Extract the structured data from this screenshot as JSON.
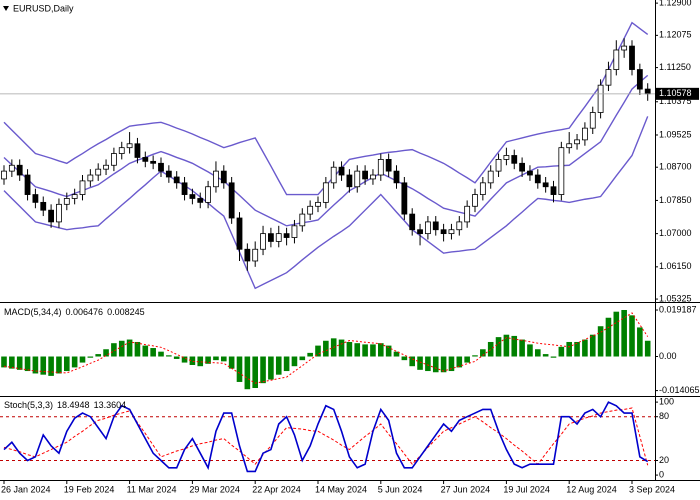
{
  "chart_data": [
    {
      "type": "candlestick",
      "title": "EURUSD,Daily",
      "categories": [
        "26 Jan 2024",
        null,
        null,
        null,
        null,
        null,
        null,
        null,
        "19 Feb 2024",
        null,
        null,
        null,
        null,
        null,
        null,
        null,
        "11 Mar 2024",
        null,
        null,
        null,
        null,
        null,
        null,
        null,
        "29 Mar 2024",
        null,
        null,
        null,
        null,
        null,
        null,
        null,
        "22 Apr 2024",
        null,
        null,
        null,
        null,
        null,
        null,
        null,
        "14 May 2024",
        null,
        null,
        null,
        null,
        null,
        null,
        null,
        "5 Jun 2024",
        null,
        null,
        null,
        null,
        null,
        null,
        null,
        "27 Jun 2024",
        null,
        null,
        null,
        null,
        null,
        null,
        null,
        "19 Jul 2024",
        null,
        null,
        null,
        null,
        null,
        null,
        null,
        "12 Aug 2024",
        null,
        null,
        null,
        null,
        null,
        null,
        null,
        "3 Sep 2024",
        null,
        null
      ],
      "open": [
        1.084,
        1.086,
        1.0875,
        1.085,
        1.08,
        1.078,
        1.076,
        1.073,
        1.0775,
        1.079,
        1.08,
        1.0835,
        1.085,
        1.0865,
        1.0875,
        1.0905,
        1.092,
        1.093,
        1.0895,
        1.0885,
        1.088,
        1.086,
        1.0845,
        1.083,
        1.08,
        1.079,
        1.078,
        1.082,
        1.086,
        1.083,
        1.074,
        1.066,
        1.063,
        1.066,
        1.07,
        1.068,
        1.07,
        1.069,
        1.072,
        1.075,
        1.077,
        1.078,
        1.083,
        1.087,
        1.085,
        1.082,
        1.086,
        1.084,
        1.085,
        1.089,
        1.086,
        1.083,
        1.075,
        1.071,
        1.07,
        1.073,
        1.071,
        1.07,
        1.071,
        1.073,
        1.077,
        1.08,
        1.083,
        1.086,
        1.089,
        1.09,
        1.088,
        1.086,
        1.085,
        1.083,
        1.082,
        1.08,
        1.092,
        1.093,
        1.094,
        1.097,
        1.101,
        1.108,
        1.112,
        1.117,
        1.118,
        1.112,
        1.107
      ],
      "high": [
        1.0875,
        1.089,
        1.089,
        1.0865,
        1.0815,
        1.0795,
        1.0775,
        1.079,
        1.0805,
        1.0815,
        1.085,
        1.0865,
        1.088,
        1.089,
        1.092,
        1.0935,
        1.096,
        1.0945,
        1.091,
        1.09,
        1.0895,
        1.0875,
        1.086,
        1.0845,
        1.0815,
        1.0805,
        1.0835,
        1.0885,
        1.0875,
        1.0845,
        1.0755,
        1.0675,
        1.068,
        1.072,
        1.0715,
        1.072,
        1.0715,
        1.0735,
        1.0765,
        1.0785,
        1.0795,
        1.0845,
        1.0885,
        1.0885,
        1.0865,
        1.0875,
        1.0875,
        1.0865,
        1.0905,
        1.0905,
        1.0875,
        1.0845,
        1.0765,
        1.0725,
        1.0745,
        1.0745,
        1.0725,
        1.0725,
        1.0745,
        1.0785,
        1.0815,
        1.0845,
        1.0875,
        1.0905,
        1.092,
        1.0915,
        1.0895,
        1.0875,
        1.0865,
        1.0845,
        1.0835,
        1.0935,
        1.096,
        1.0955,
        1.0985,
        1.1025,
        1.1095,
        1.114,
        1.1195,
        1.12,
        1.1195,
        1.1135,
        1.1085
      ],
      "low": [
        1.0825,
        1.0845,
        1.0835,
        1.0785,
        1.0765,
        1.0745,
        1.0715,
        1.0715,
        1.076,
        1.0775,
        1.0785,
        1.082,
        1.0835,
        1.085,
        1.086,
        1.089,
        1.0905,
        1.088,
        1.087,
        1.0865,
        1.0845,
        1.083,
        1.0815,
        1.0785,
        1.0775,
        1.0765,
        1.0765,
        1.0805,
        1.0815,
        1.0725,
        1.063,
        1.0605,
        1.0615,
        1.0645,
        1.0665,
        1.0665,
        1.067,
        1.0675,
        1.0705,
        1.0735,
        1.0755,
        1.0765,
        1.0815,
        1.0835,
        1.0805,
        1.0805,
        1.0825,
        1.0825,
        1.0835,
        1.0845,
        1.0815,
        1.0735,
        1.0695,
        1.067,
        1.0685,
        1.0695,
        1.068,
        1.0685,
        1.0695,
        1.0715,
        1.0755,
        1.0785,
        1.0815,
        1.0845,
        1.0875,
        1.0865,
        1.0845,
        1.0835,
        1.0815,
        1.0805,
        1.078,
        1.0785,
        1.0905,
        1.0915,
        1.0925,
        1.0955,
        1.0995,
        1.1065,
        1.1105,
        1.115,
        1.1105,
        1.1055,
        1.104
      ],
      "close": [
        1.086,
        1.0875,
        1.085,
        1.08,
        1.078,
        1.076,
        1.073,
        1.0775,
        1.079,
        1.08,
        1.0835,
        1.085,
        1.0865,
        1.0875,
        1.0905,
        1.092,
        1.093,
        1.0895,
        1.0885,
        1.088,
        1.086,
        1.0845,
        1.083,
        1.08,
        1.079,
        1.078,
        1.082,
        1.086,
        1.083,
        1.074,
        1.066,
        1.063,
        1.066,
        1.07,
        1.068,
        1.07,
        1.069,
        1.072,
        1.075,
        1.077,
        1.078,
        1.083,
        1.087,
        1.085,
        1.082,
        1.086,
        1.084,
        1.085,
        1.089,
        1.086,
        1.083,
        1.075,
        1.071,
        1.07,
        1.073,
        1.071,
        1.07,
        1.071,
        1.073,
        1.077,
        1.08,
        1.083,
        1.086,
        1.089,
        1.09,
        1.088,
        1.086,
        1.085,
        1.083,
        1.082,
        1.08,
        1.092,
        1.093,
        1.094,
        1.097,
        1.101,
        1.108,
        1.112,
        1.117,
        1.118,
        1.112,
        1.107,
        1.1058
      ],
      "up_color": "#ffffff",
      "down_color": "#000000",
      "bands": {
        "color": "#6a5acd",
        "upper": [
          1.0985,
          1.0965,
          1.0945,
          1.0925,
          1.0905,
          1.0899,
          1.0893,
          1.0886,
          1.088,
          1.0893,
          1.0905,
          1.0918,
          1.093,
          1.0941,
          1.0953,
          1.0964,
          1.0975,
          1.0978,
          1.098,
          1.0983,
          1.0985,
          1.0978,
          1.097,
          1.0963,
          1.0955,
          1.0946,
          1.0938,
          1.0929,
          1.092,
          1.0926,
          1.0933,
          1.0939,
          1.0945,
          1.0909,
          1.0873,
          1.0836,
          1.08,
          1.08,
          1.08,
          1.08,
          1.08,
          1.0823,
          1.0845,
          1.0868,
          1.089,
          1.0894,
          1.0898,
          1.0901,
          1.0905,
          1.0908,
          1.091,
          1.0913,
          1.0915,
          1.0906,
          1.0898,
          1.0889,
          1.088,
          1.0868,
          1.0855,
          1.0843,
          1.083,
          1.0856,
          1.0883,
          1.0909,
          1.0935,
          1.094,
          1.0945,
          1.095,
          1.0955,
          1.0959,
          1.0963,
          1.0966,
          1.097,
          1.0998,
          1.1025,
          1.1053,
          1.108,
          1.112,
          1.116,
          1.12,
          1.124,
          1.1225,
          1.121
        ],
        "middle": [
          1.0895,
          1.0876,
          1.0858,
          1.0839,
          1.082,
          1.0814,
          1.0808,
          1.0801,
          1.0795,
          1.0803,
          1.081,
          1.0818,
          1.0825,
          1.0839,
          1.0853,
          1.0866,
          1.088,
          1.0888,
          1.0895,
          1.0903,
          1.091,
          1.0903,
          1.0895,
          1.0888,
          1.088,
          1.0869,
          1.0858,
          1.0846,
          1.0835,
          1.0816,
          1.0798,
          1.0779,
          1.076,
          1.075,
          1.074,
          1.073,
          1.072,
          1.0724,
          1.0728,
          1.0731,
          1.0735,
          1.0754,
          1.0773,
          1.0791,
          1.081,
          1.0821,
          1.0833,
          1.0844,
          1.0855,
          1.0845,
          1.0835,
          1.0825,
          1.0815,
          1.0803,
          1.079,
          1.0778,
          1.0765,
          1.076,
          1.0755,
          1.075,
          1.0745,
          1.0766,
          1.0788,
          1.0809,
          1.083,
          1.084,
          1.085,
          1.086,
          1.087,
          1.0871,
          1.0873,
          1.0874,
          1.0875,
          1.089,
          1.0905,
          1.092,
          1.0935,
          1.0969,
          1.1003,
          1.1036,
          1.107,
          1.1088,
          1.1105
        ],
        "lower": [
          1.081,
          1.079,
          1.077,
          1.075,
          1.073,
          1.0725,
          1.072,
          1.0715,
          1.071,
          1.0713,
          1.0715,
          1.0718,
          1.072,
          1.0738,
          1.0755,
          1.0773,
          1.079,
          1.0808,
          1.0825,
          1.0843,
          1.086,
          1.0848,
          1.0835,
          1.0823,
          1.081,
          1.0794,
          1.0778,
          1.0761,
          1.0745,
          1.0699,
          1.0653,
          1.0606,
          1.056,
          1.057,
          1.058,
          1.059,
          1.06,
          1.0616,
          1.0633,
          1.0649,
          1.0665,
          1.0679,
          1.0693,
          1.0706,
          1.072,
          1.074,
          1.076,
          1.078,
          1.08,
          1.0778,
          1.0755,
          1.0733,
          1.071,
          1.0695,
          1.068,
          1.0665,
          1.065,
          1.0653,
          1.0655,
          1.0658,
          1.066,
          1.0675,
          1.069,
          1.0705,
          1.072,
          1.0738,
          1.0755,
          1.0773,
          1.079,
          1.0788,
          1.0785,
          1.0783,
          1.078,
          1.0784,
          1.0788,
          1.0791,
          1.0795,
          1.0821,
          1.0848,
          1.0874,
          1.09,
          1.095,
          1.1
        ]
      },
      "last_price": 1.10578,
      "ylim": [
        1.0525,
        1.1298
      ],
      "yticks": [
        {
          "value": 1.129,
          "label": "1.12900"
        },
        {
          "value": 1.12075,
          "label": "1.12075"
        },
        {
          "value": 1.1125,
          "label": "1.11250"
        },
        {
          "value": 1.10375,
          "label": "1.10375"
        },
        {
          "value": 1.09525,
          "label": "1.09525"
        },
        {
          "value": 1.087,
          "label": "1.08700"
        },
        {
          "value": 1.0785,
          "label": "1.07850"
        },
        {
          "value": 1.07,
          "label": "1.07000"
        },
        {
          "value": 1.0615,
          "label": "1.06150"
        },
        {
          "value": 1.05325,
          "label": "1.05325"
        }
      ]
    },
    {
      "type": "macd",
      "title": "MACD(5,34,4)",
      "readout": [
        0.006476,
        0.008245
      ],
      "color": "#008000",
      "signal_color": "#ff0000",
      "values": [
        -0.0045,
        -0.005,
        -0.0055,
        -0.006,
        -0.007,
        -0.0075,
        -0.008,
        -0.007,
        -0.006,
        -0.0045,
        -0.0025,
        -0.0005,
        0.001,
        0.003,
        0.0055,
        0.0065,
        0.007,
        0.006,
        0.0045,
        0.0035,
        0.002,
        0.0005,
        -0.001,
        -0.0025,
        -0.0035,
        -0.004,
        -0.003,
        -0.0015,
        -0.002,
        -0.005,
        -0.0105,
        -0.0135,
        -0.013,
        -0.011,
        -0.0095,
        -0.0075,
        -0.006,
        -0.004,
        -0.0015,
        0.0015,
        0.0045,
        0.0065,
        0.0075,
        0.007,
        0.006,
        0.0055,
        0.005,
        0.005,
        0.0055,
        0.0045,
        0.002,
        -0.0015,
        -0.004,
        -0.0055,
        -0.006,
        -0.0065,
        -0.0065,
        -0.006,
        -0.0045,
        -0.0025,
        0.0005,
        0.003,
        0.006,
        0.008,
        0.009,
        0.0085,
        0.007,
        0.005,
        0.003,
        0.001,
        -0.0005,
        0.004,
        0.006,
        0.006,
        0.007,
        0.009,
        0.0125,
        0.016,
        0.0185,
        0.0192,
        0.017,
        0.012,
        0.0065
      ],
      "signal": [
        -0.004,
        -0.0045,
        -0.005,
        -0.0055,
        -0.006,
        -0.0062,
        -0.0064,
        -0.0066,
        -0.0068,
        -0.0055,
        -0.0042,
        -0.0028,
        -0.0015,
        0.0004,
        0.0023,
        0.0041,
        0.006,
        0.0055,
        0.0049,
        0.0044,
        0.0038,
        0.0024,
        0.0009,
        -0.0006,
        -0.002,
        -0.0022,
        -0.0024,
        -0.0026,
        -0.0028,
        -0.0049,
        -0.0069,
        -0.009,
        -0.011,
        -0.0104,
        -0.0098,
        -0.0091,
        -0.0085,
        -0.0061,
        -0.0038,
        -0.0014,
        0.001,
        0.0024,
        0.0038,
        0.0052,
        0.0066,
        0.0063,
        0.0059,
        0.0056,
        0.0052,
        0.0037,
        0.0021,
        0.0006,
        -0.001,
        -0.0023,
        -0.0035,
        -0.0048,
        -0.006,
        -0.005,
        -0.004,
        -0.003,
        -0.002,
        0.0005,
        0.0029,
        0.0054,
        0.0078,
        0.0072,
        0.0067,
        0.0061,
        0.0055,
        0.0051,
        0.0048,
        0.0044,
        0.004,
        0.0055,
        0.007,
        0.0085,
        0.01,
        0.012,
        0.014,
        0.016,
        0.018,
        0.0131,
        0.0082
      ],
      "ylim": [
        -0.0163,
        0.0225
      ],
      "yticks": [
        0.019187,
        {
          "value": 0,
          "label": "0.00"
        },
        -0.014065
      ]
    },
    {
      "type": "stochastic",
      "title": "Stoch(5,3,3)",
      "readout": [
        18.4948,
        13.3604
      ],
      "color": "#0000cc",
      "signal_color": "#ff0000",
      "level_color": "#c00000",
      "main": [
        35,
        45,
        30,
        20,
        25,
        55,
        40,
        30,
        60,
        78,
        85,
        80,
        65,
        50,
        80,
        95,
        90,
        70,
        50,
        30,
        20,
        10,
        10,
        35,
        50,
        30,
        10,
        60,
        85,
        85,
        40,
        5,
        5,
        30,
        35,
        70,
        80,
        55,
        20,
        40,
        70,
        95,
        90,
        60,
        25,
        10,
        15,
        60,
        90,
        75,
        30,
        10,
        10,
        25,
        40,
        55,
        70,
        60,
        75,
        80,
        85,
        90,
        90,
        60,
        35,
        15,
        10,
        15,
        15,
        15,
        15,
        80,
        80,
        70,
        85,
        90,
        80,
        100,
        95,
        85,
        85,
        25,
        18.5
      ],
      "signal": [
        38,
        35,
        32,
        28,
        25,
        30,
        35,
        40,
        45,
        53,
        60,
        68,
        75,
        78,
        82,
        85,
        88,
        72,
        57,
        41,
        25,
        29,
        33,
        36,
        40,
        43,
        45,
        48,
        50,
        41,
        33,
        24,
        15,
        28,
        40,
        53,
        65,
        64,
        63,
        61,
        60,
        54,
        48,
        41,
        35,
        44,
        53,
        61,
        70,
        56,
        43,
        29,
        15,
        26,
        38,
        49,
        60,
        65,
        70,
        75,
        80,
        73,
        65,
        58,
        50,
        41,
        33,
        24,
        15,
        29,
        43,
        56,
        70,
        74,
        78,
        81,
        85,
        87,
        89,
        90,
        92,
        53,
        13.4
      ],
      "levels": [
        80,
        20
      ],
      "ylim": [
        -4,
        107
      ],
      "yticks": [
        100,
        80,
        20,
        0
      ]
    }
  ]
}
